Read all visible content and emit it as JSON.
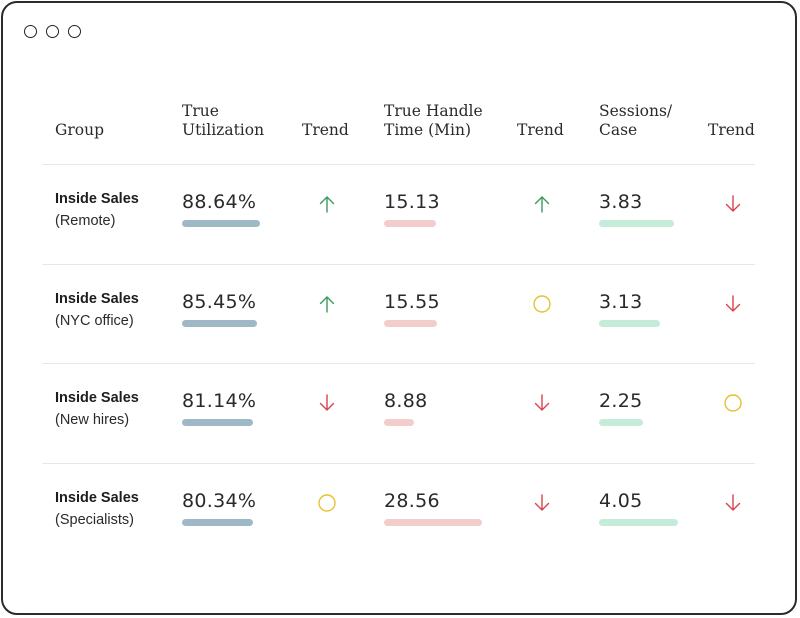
{
  "colors": {
    "utilization_bar": "#9fb8c6",
    "handle_time_bar": "#f3cccc",
    "sessions_bar": "#c5ebd9",
    "trend_up": "#3a9a5c",
    "trend_down": "#d9434e",
    "trend_neutral": "#e6c22e"
  },
  "headers": {
    "group": "Group",
    "utilization_1": "True",
    "utilization_2": "Utilization",
    "trend_a": "Trend",
    "handle_1": "True Handle",
    "handle_2": "Time (Min)",
    "trend_b": "Trend",
    "sessions_1": "Sessions/",
    "sessions_2": "Case",
    "trend_c": "Trend"
  },
  "rows": [
    {
      "group": "Inside Sales",
      "subgroup": "(Remote)",
      "utilization": "88.64%",
      "utilization_fill": 0.8864,
      "utilization_trend": "up-arrow-icon",
      "handle_time": "15.13",
      "handle_time_value": 15.13,
      "handle_trend": "up-arrow-icon",
      "sessions": "3.83",
      "sessions_value": 3.83,
      "sessions_trend": "down-arrow-icon"
    },
    {
      "group": "Inside Sales",
      "subgroup": "(NYC office)",
      "utilization": "85.45%",
      "utilization_fill": 0.8545,
      "utilization_trend": "up-arrow-icon",
      "handle_time": "15.55",
      "handle_time_value": 15.55,
      "handle_trend": "neutral-circle-icon",
      "sessions": "3.13",
      "sessions_value": 3.13,
      "sessions_trend": "down-arrow-icon"
    },
    {
      "group": "Inside Sales",
      "subgroup": "(New hires)",
      "utilization": "81.14%",
      "utilization_fill": 0.8114,
      "utilization_trend": "down-arrow-icon",
      "handle_time": "8.88",
      "handle_time_value": 8.88,
      "handle_trend": "down-arrow-icon",
      "sessions": "2.25",
      "sessions_value": 2.25,
      "sessions_trend": "neutral-circle-icon"
    },
    {
      "group": "Inside Sales",
      "subgroup": "(Specialists)",
      "utilization": "80.34%",
      "utilization_fill": 0.8034,
      "utilization_trend": "neutral-circle-icon",
      "handle_time": "28.56",
      "handle_time_value": 28.56,
      "handle_trend": "down-arrow-icon",
      "sessions": "4.05",
      "sessions_value": 4.05,
      "sessions_trend": "down-arrow-icon"
    }
  ]
}
